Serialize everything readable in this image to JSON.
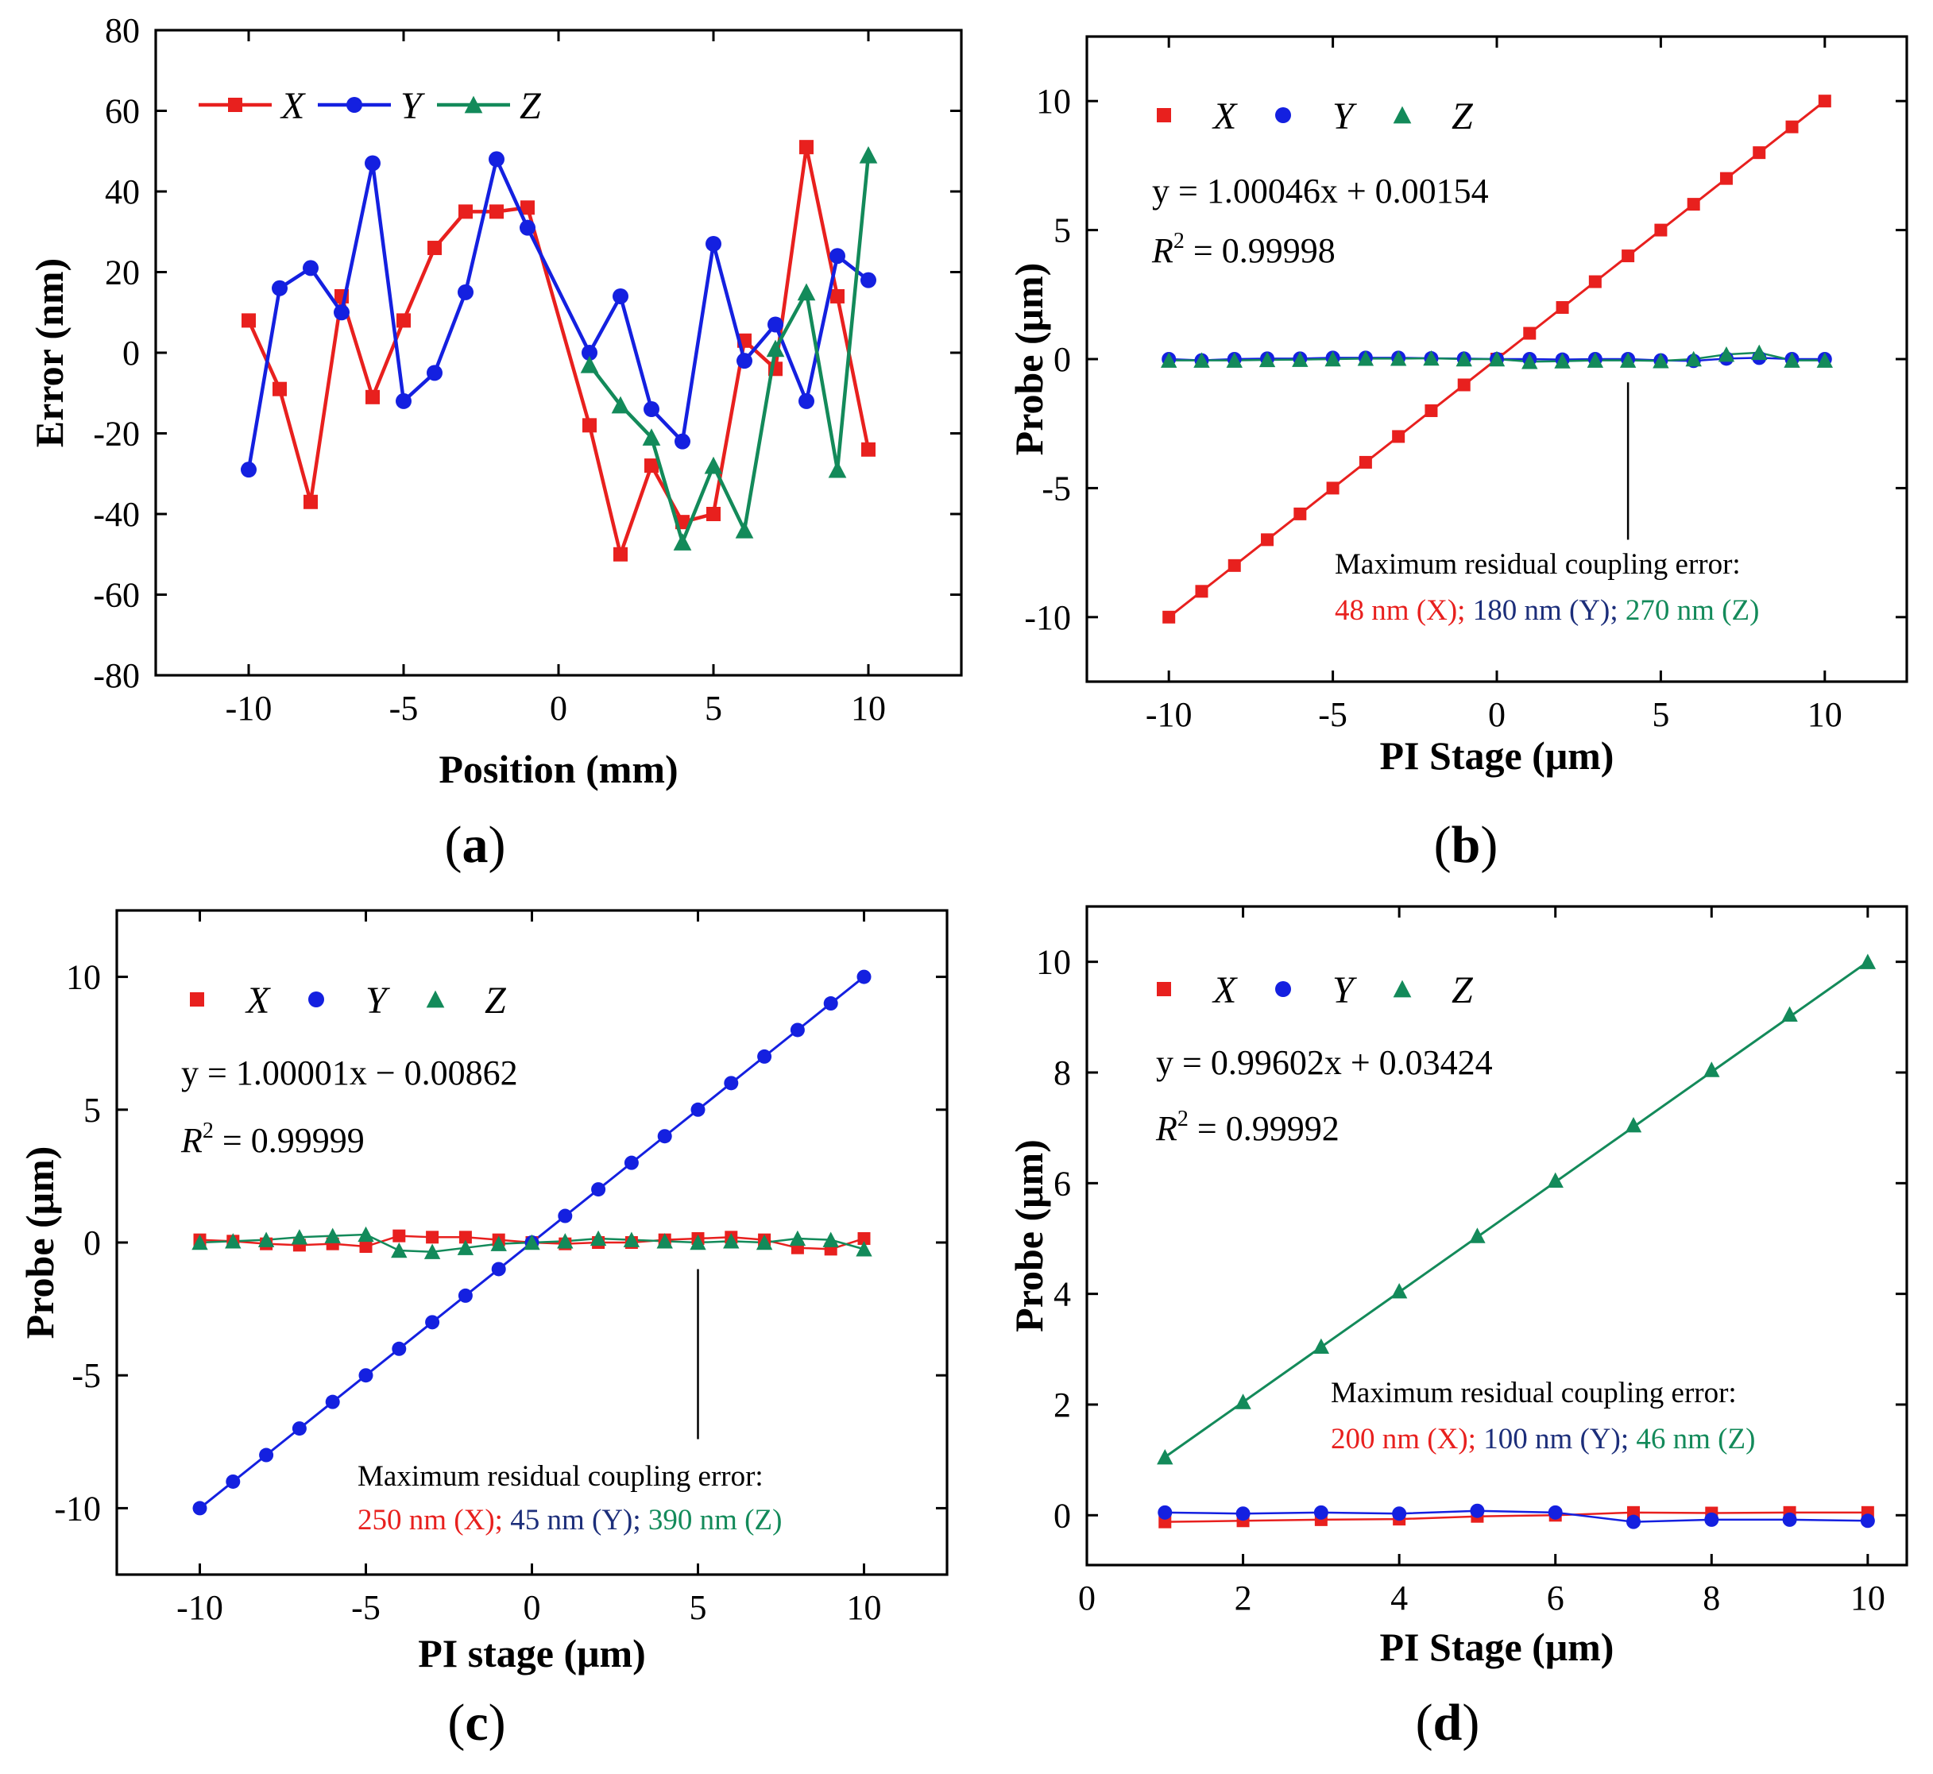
{
  "colors": {
    "X": "#e8201e",
    "Y": "#1420e0",
    "Z": "#138a5a",
    "Yanno": "#1c2e7a"
  },
  "chart_data": [
    {
      "id": "a",
      "type": "line",
      "panel_label": "a",
      "xlabel": "Position (mm)",
      "ylabel": "Error (nm)",
      "xlim": [
        -13,
        13
      ],
      "ylim": [
        -80,
        80
      ],
      "xticks": [
        -10,
        -5,
        0,
        5,
        10
      ],
      "xtick_labels": [
        "-10",
        "-5",
        "0",
        "5",
        "10"
      ],
      "yticks": [
        -80,
        -60,
        -40,
        -20,
        0,
        20,
        40,
        60,
        80
      ],
      "ytick_labels": [
        "-80",
        "-60",
        "-40",
        "-20",
        "0",
        "20",
        "40",
        "60",
        "80"
      ],
      "legend": {
        "placement": "top-left",
        "entries": [
          "X",
          "Y",
          "Z"
        ]
      },
      "series": [
        {
          "name": "X",
          "marker": "square",
          "lines": true,
          "x": [
            -10,
            -9,
            -8,
            -7,
            -6,
            -5,
            -4,
            -3,
            -2,
            -1,
            1,
            2,
            3,
            4,
            5,
            6,
            7,
            8,
            9,
            10
          ],
          "y": [
            8,
            -9,
            -37,
            14,
            -11,
            8,
            26,
            35,
            35,
            36,
            -18,
            -50,
            -28,
            -42,
            -40,
            3,
            -4,
            51,
            14,
            -24
          ]
        },
        {
          "name": "Y",
          "marker": "circle",
          "lines": true,
          "x": [
            -10,
            -9,
            -8,
            -7,
            -6,
            -5,
            -4,
            -3,
            -2,
            -1,
            1,
            2,
            3,
            4,
            5,
            6,
            7,
            8,
            9,
            10
          ],
          "y": [
            -29,
            16,
            21,
            10,
            47,
            -12,
            -5,
            15,
            48,
            31,
            0,
            14,
            -14,
            -22,
            27,
            -2,
            7,
            -12,
            24,
            18
          ]
        },
        {
          "name": "Z",
          "marker": "triangle",
          "lines": true,
          "x": [
            1,
            2,
            3,
            4,
            5,
            6,
            7,
            8,
            9,
            10
          ],
          "y": [
            -3,
            -13,
            -21,
            -47,
            -28,
            -44,
            1,
            15,
            -29,
            49
          ]
        }
      ]
    },
    {
      "id": "b",
      "type": "scatter",
      "panel_label": "b",
      "xlabel": "PI Stage (μm)",
      "ylabel": "Probe  (μm)",
      "xlim": [
        -12.5,
        12.5
      ],
      "ylim": [
        -12.5,
        12.5
      ],
      "xticks": [
        -10,
        -5,
        0,
        5,
        10
      ],
      "xtick_labels": [
        "-10",
        "-5",
        "0",
        "5",
        "10"
      ],
      "yticks": [
        -10,
        -5,
        0,
        5,
        10
      ],
      "ytick_labels": [
        "-10",
        "-5",
        "0",
        "5",
        "10"
      ],
      "legend": {
        "placement": "top-left",
        "entries": [
          "X",
          "Y",
          "Z"
        ]
      },
      "fit_color_series": "X",
      "equation": {
        "line1": "y = 1.00046x + 0.00154",
        "line2_prefix": "R",
        "line2_sup": "2",
        "line2_rest": " = 0.99998"
      },
      "annotation": {
        "title": "Maximum residual coupling error:",
        "x_part": "48 nm (X);",
        "y_part": "180 nm (Y);",
        "z_part": "270 nm (Z)",
        "pointer_x": 4,
        "pointer_y0": -0.9,
        "pointer_y1": -7
      },
      "series": [
        {
          "name": "X",
          "marker": "square",
          "x": [
            -10,
            -9,
            -8,
            -7,
            -6,
            -5,
            -4,
            -3,
            -2,
            -1,
            0,
            1,
            2,
            3,
            4,
            5,
            6,
            7,
            8,
            9,
            10
          ],
          "y": [
            -10,
            -9,
            -8,
            -7,
            -6,
            -5,
            -4,
            -3,
            -2,
            -1,
            0,
            1,
            2,
            3,
            4,
            5,
            6,
            7,
            8,
            9,
            10
          ]
        },
        {
          "name": "Y",
          "marker": "circle",
          "x": [
            -10,
            -9,
            -8,
            -7,
            -6,
            -5,
            -4,
            -3,
            -2,
            -1,
            0,
            1,
            2,
            3,
            4,
            5,
            6,
            7,
            8,
            9,
            10
          ],
          "y": [
            0,
            -0.05,
            0,
            0.02,
            0.02,
            0.05,
            0.05,
            0.05,
            0.03,
            0.02,
            0,
            0,
            -0.02,
            0,
            0,
            -0.05,
            -0.07,
            0.02,
            0.05,
            0,
            0
          ]
        },
        {
          "name": "Z",
          "marker": "triangle",
          "x": [
            -10,
            -9,
            -8,
            -7,
            -6,
            -5,
            -4,
            -3,
            -2,
            -1,
            0,
            1,
            2,
            3,
            4,
            5,
            6,
            7,
            8,
            9,
            10
          ],
          "y": [
            -0.05,
            -0.05,
            -0.05,
            -0.03,
            -0.02,
            0,
            0.02,
            0.02,
            0.03,
            0,
            0,
            -0.1,
            -0.08,
            -0.05,
            -0.05,
            -0.07,
            0,
            0.18,
            0.25,
            -0.05,
            -0.05
          ]
        }
      ]
    },
    {
      "id": "c",
      "type": "scatter",
      "panel_label": "c",
      "xlabel": "PI stage (μm)",
      "ylabel": "Probe (μm)",
      "xlim": [
        -12.5,
        12.5
      ],
      "ylim": [
        -12.5,
        12.5
      ],
      "xticks": [
        -10,
        -5,
        0,
        5,
        10
      ],
      "xtick_labels": [
        "-10",
        "-5",
        "0",
        "5",
        "10"
      ],
      "yticks": [
        -10,
        -5,
        0,
        5,
        10
      ],
      "ytick_labels": [
        "-10",
        "-5",
        "0",
        "5",
        "10"
      ],
      "legend": {
        "placement": "top-left",
        "entries": [
          "X",
          "Y",
          "Z"
        ]
      },
      "fit_color_series": "Y",
      "equation": {
        "line1": "y = 1.00001x − 0.00862",
        "line2_prefix": "R",
        "line2_sup": "2",
        "line2_rest": " = 0.99999"
      },
      "annotation": {
        "title": "Maximum residual coupling error:",
        "x_part": "250 nm (X);",
        "y_part": "45 nm (Y);",
        "z_part": "390 nm (Z)",
        "pointer_x": 5,
        "pointer_y0": -1,
        "pointer_y1": -7.4
      },
      "series": [
        {
          "name": "X",
          "marker": "square",
          "x": [
            -10,
            -9,
            -8,
            -7,
            -6,
            -5,
            -4,
            -3,
            -2,
            -1,
            0,
            1,
            2,
            3,
            4,
            5,
            6,
            7,
            8,
            9,
            10
          ],
          "y": [
            0.1,
            0.05,
            -0.05,
            -0.1,
            -0.05,
            -0.15,
            0.25,
            0.2,
            0.2,
            0.1,
            0,
            -0.05,
            0,
            0,
            0.1,
            0.15,
            0.2,
            0.1,
            -0.2,
            -0.25,
            0.15
          ]
        },
        {
          "name": "Y",
          "marker": "circle",
          "x": [
            -10,
            -9,
            -8,
            -7,
            -6,
            -5,
            -4,
            -3,
            -2,
            -1,
            0,
            1,
            2,
            3,
            4,
            5,
            6,
            7,
            8,
            9,
            10
          ],
          "y": [
            -10,
            -9,
            -8,
            -7,
            -6,
            -5,
            -4,
            -3,
            -2,
            -1,
            0,
            1,
            2,
            3,
            4,
            5,
            6,
            7,
            8,
            9,
            10
          ]
        },
        {
          "name": "Z",
          "marker": "triangle",
          "x": [
            -10,
            -9,
            -8,
            -7,
            -6,
            -5,
            -4,
            -3,
            -2,
            -1,
            0,
            1,
            2,
            3,
            4,
            5,
            6,
            7,
            8,
            9,
            10
          ],
          "y": [
            0,
            0.05,
            0.1,
            0.2,
            0.25,
            0.3,
            -0.3,
            -0.35,
            -0.2,
            -0.05,
            0,
            0.05,
            0.15,
            0.1,
            0.05,
            0,
            0.05,
            0,
            0.15,
            0.1,
            -0.25
          ]
        }
      ]
    },
    {
      "id": "d",
      "type": "scatter",
      "panel_label": "d",
      "xlabel": "PI Stage (μm)",
      "ylabel": "Probe  (μm)",
      "xlim": [
        0,
        10.5
      ],
      "ylim": [
        -0.9,
        11
      ],
      "xticks": [
        0,
        2,
        4,
        6,
        8,
        10
      ],
      "xtick_labels": [
        "0",
        "2",
        "4",
        "6",
        "8",
        "10"
      ],
      "yticks": [
        0,
        2,
        4,
        6,
        8,
        10
      ],
      "ytick_labels": [
        "0",
        "2",
        "4",
        "6",
        "8",
        "10"
      ],
      "legend": {
        "placement": "top-left",
        "entries": [
          "X",
          "Y",
          "Z"
        ]
      },
      "fit_color_series": "Z",
      "equation": {
        "line1": "y = 0.99602x + 0.03424",
        "line2_prefix": "R",
        "line2_sup": "2",
        "line2_rest": " = 0.99992"
      },
      "annotation": {
        "title": "Maximum residual coupling error:",
        "x_part": "200 nm (X);",
        "y_part": "100 nm (Y);",
        "z_part": "46 nm (Z)"
      },
      "series": [
        {
          "name": "X",
          "marker": "square",
          "x": [
            1,
            2,
            3,
            4,
            5,
            6,
            7,
            8,
            9,
            10
          ],
          "y": [
            -0.12,
            -0.1,
            -0.08,
            -0.07,
            -0.02,
            0,
            0.05,
            0.04,
            0.05,
            0.05
          ]
        },
        {
          "name": "Y",
          "marker": "circle",
          "x": [
            1,
            2,
            3,
            4,
            5,
            6,
            7,
            8,
            9,
            10
          ],
          "y": [
            0.05,
            0.03,
            0.05,
            0.03,
            0.08,
            0.05,
            -0.12,
            -0.08,
            -0.08,
            -0.1
          ]
        },
        {
          "name": "Z",
          "marker": "triangle",
          "x": [
            1,
            2,
            3,
            4,
            5,
            6,
            7,
            8,
            9,
            10
          ],
          "y": [
            1.05,
            2.05,
            3.05,
            4.05,
            5.05,
            6.05,
            7.05,
            8.05,
            9.05,
            10.0
          ]
        }
      ]
    }
  ]
}
